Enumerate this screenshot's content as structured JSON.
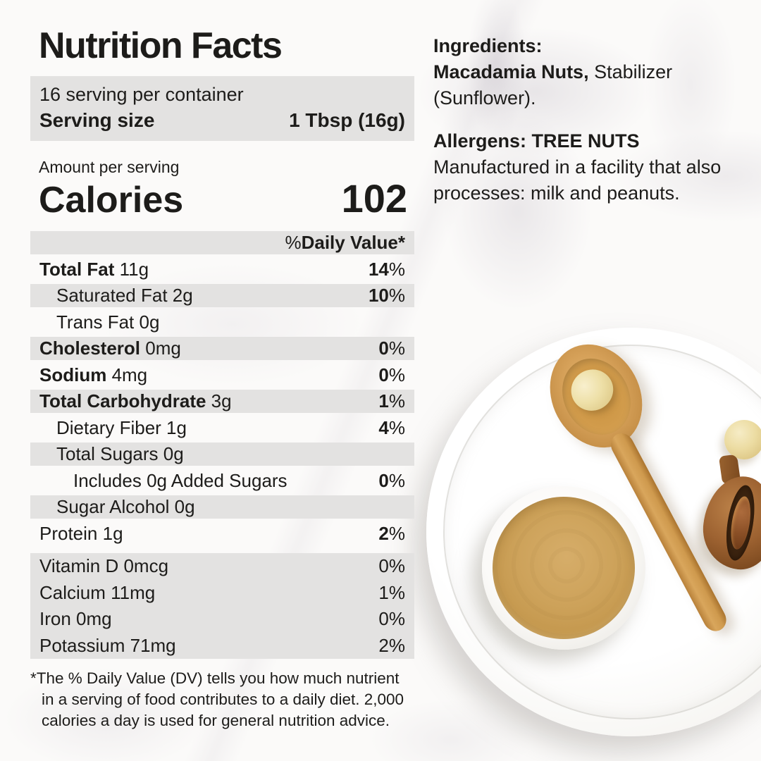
{
  "colors": {
    "row_gray": "#e3e2e1",
    "text": "#1d1c1a",
    "butter": "#c99f55",
    "spoon_wood": "#cf9a4e",
    "husk_brown": "#8a5426",
    "macadamia_cream": "#ecdca2",
    "plate_white": "#fdfdfc"
  },
  "label": {
    "title": "Nutrition Facts",
    "servings_per_container": "16 serving per container",
    "serving_size": {
      "label": "Serving size",
      "value": "1 Tbsp (16g)"
    },
    "amount_per_serving": "Amount per serving",
    "calories": {
      "label": "Calories",
      "value": "102"
    },
    "daily_value_header": {
      "pct": "% ",
      "label": "Daily Value*"
    },
    "rows": [
      {
        "bold": "Total Fat",
        "rest": " 11g",
        "pct": "14",
        "sign": "%"
      },
      {
        "bold": "",
        "rest": "Saturated Fat 2g",
        "pct": "10",
        "sign": "%"
      },
      {
        "bold": "",
        "rest": "Trans Fat 0g",
        "pct": "",
        "sign": ""
      },
      {
        "bold": "Cholesterol",
        "rest": " 0mg",
        "pct": "0",
        "sign": "%"
      },
      {
        "bold": "Sodium",
        "rest": " 4mg",
        "pct": "0",
        "sign": "%"
      },
      {
        "bold": "Total Carbohydrate",
        "rest": " 3g",
        "pct": "1",
        "sign": "%"
      },
      {
        "bold": "",
        "rest": "Dietary Fiber 1g",
        "pct": "4",
        "sign": "%"
      },
      {
        "bold": "",
        "rest": "Total Sugars 0g",
        "pct": "",
        "sign": ""
      },
      {
        "bold": "",
        "rest": "Includes 0g Added Sugars",
        "pct": "0",
        "sign": "%"
      },
      {
        "bold": "",
        "rest": "Sugar Alcohol 0g",
        "pct": "",
        "sign": ""
      },
      {
        "bold": "",
        "rest": "Protein 1g",
        "pct": "2",
        "sign": "%"
      }
    ],
    "micros": [
      {
        "name": "Vitamin D 0mcg",
        "pct": "0%"
      },
      {
        "name": "Calcium 11mg",
        "pct": "1%"
      },
      {
        "name": "Iron 0mg",
        "pct": "0%"
      },
      {
        "name": "Potassium 71mg",
        "pct": "2%"
      }
    ],
    "footnote": "*The % Daily Value (DV) tells you how much nutrient in a serving of food contributes to a daily diet. 2,000 calories a day is used for general nutrition advice."
  },
  "ingredients_panel": {
    "heading": "Ingredients:",
    "bold_items": "Macadamia Nuts,",
    "regular_items": " Stabilizer (Sunflower).",
    "allergens_heading": "Allergens: TREE NUTS",
    "allergens_text": "Manufactured in a facility that also processes: milk and peanuts."
  },
  "photo": {
    "plate": "white-ceramic-plate",
    "spoon": "wooden-spoon",
    "spoon_nut": "macadamia-nut-on-spoon",
    "butter_bowl": "macadamia-butter-bowl",
    "loose_nut": "macadamia-nut",
    "husk": "macadamia-nut-in-husk"
  }
}
